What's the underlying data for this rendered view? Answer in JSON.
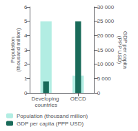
{
  "chart_data": {
    "type": "bar",
    "categories": [
      "Developing countries",
      "OECD"
    ],
    "series": [
      {
        "name": "Population (thousand million)",
        "color": "#b2ede3",
        "values": [
          5.0,
          1.2
        ]
      },
      {
        "name": "GDP per capita (PPP USD)",
        "color": "#1a6b5a",
        "values": [
          4000,
          25000
        ],
        "axis": "y2"
      }
    ],
    "ylabel": "Population\n(thousand million)",
    "y2label": "GDP per capita\n(PPP USD)",
    "ylim": [
      0,
      6
    ],
    "yticks": [
      0,
      1,
      2,
      3,
      4,
      5,
      6
    ],
    "y2lim": [
      0,
      30000
    ],
    "y2ticks": [
      0,
      {
        "value": 5000,
        "label": "5 000"
      },
      {
        "value": 10000,
        "label": "10 000"
      },
      {
        "value": 15000,
        "label": "15 000"
      },
      {
        "value": 20000,
        "label": "20 000"
      },
      {
        "value": 25000,
        "label": "25 000"
      },
      {
        "value": 30000,
        "label": "30 000"
      }
    ],
    "legend": "bottom",
    "grid": false
  }
}
